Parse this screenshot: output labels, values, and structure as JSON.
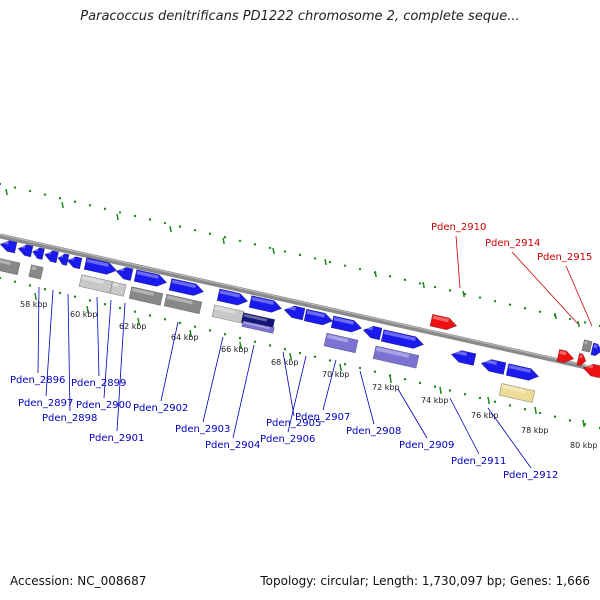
{
  "title": "Paracoccus denitrificans PD1222 chromosome 2, complete seque...",
  "footer": {
    "accession": "Accession: NC_008687",
    "summary": "Topology: circular; Length: 1,730,097 bp; Genes: 1,666"
  },
  "colors": {
    "cds": "#1a1aee",
    "rna": "#ee1111",
    "pseudo_gray": "#888888",
    "light_gray": "#c8c8c8",
    "purple": "#7c72d4",
    "tan": "#ecdc98",
    "ruler": "#1a8a1a",
    "backbone": "#888888",
    "blue_label": "#0000bb",
    "red_label": "#cc0000"
  },
  "scale_labels": [
    "58 kbp",
    "60 kbp",
    "62 kbp",
    "64 kbp",
    "66 kbp",
    "68 kbp",
    "70 kbp",
    "72 kbp",
    "74 kbp",
    "76 kbp",
    "78 kbp",
    "80 kbp"
  ],
  "gene_labels_below": [
    "Pden_2896",
    "Pden_2897",
    "Pden_2898",
    "Pden_2899",
    "Pden_2900",
    "Pden_2901",
    "Pden_2902",
    "Pden_2903",
    "Pden_2904",
    "Pden_2905",
    "Pden_2906",
    "Pden_2907",
    "Pden_2908",
    "Pden_2909",
    "Pden_2911",
    "Pden_2912"
  ],
  "gene_labels_above": [
    "Pden_2910",
    "Pden_2914",
    "Pden_2915"
  ]
}
